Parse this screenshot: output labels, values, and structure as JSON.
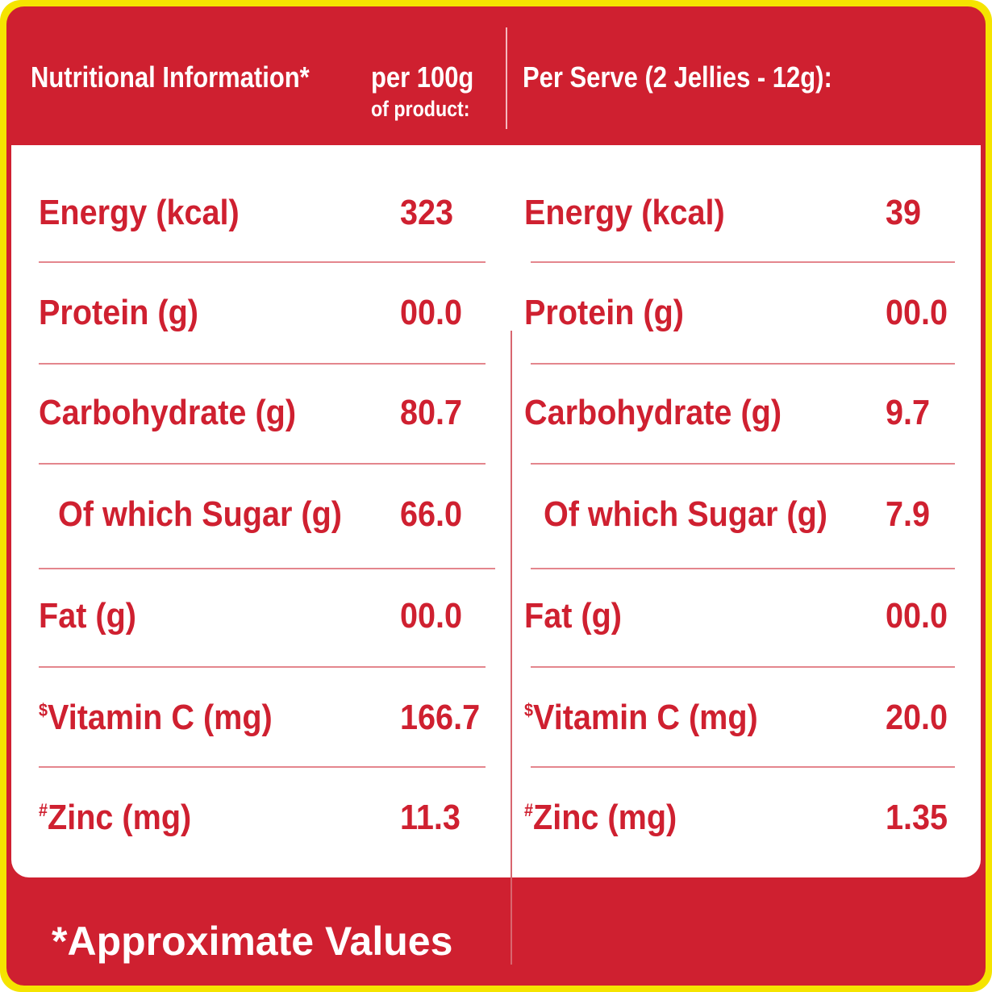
{
  "header": {
    "title": "Nutritional Information*",
    "per_100g_line1": "per 100g",
    "per_100g_line2": "of product:",
    "per_serve": "Per Serve (2 Jellies - 12g):"
  },
  "rows": [
    {
      "label": "Energy (kcal)",
      "mark": "",
      "per_100g": "323",
      "per_serve": "39"
    },
    {
      "label": "Protein (g)",
      "mark": "",
      "per_100g": "00.0",
      "per_serve": "00.0"
    },
    {
      "label": "Carbohydrate (g)",
      "mark": "",
      "per_100g": "80.7",
      "per_serve": "9.7"
    },
    {
      "label": "Of which Sugar (g)",
      "mark": "",
      "per_100g": "66.0",
      "per_serve": "7.9"
    },
    {
      "label": "Fat (g)",
      "mark": "",
      "per_100g": "00.0",
      "per_serve": "00.0"
    },
    {
      "label": "Vitamin C (mg)",
      "mark": "$",
      "per_100g": "166.7",
      "per_serve": "20.0"
    },
    {
      "label": "Zinc (mg)",
      "mark": "#",
      "per_100g": "11.3",
      "per_serve": "1.35"
    }
  ],
  "footer": "*Approximate Values",
  "colors": {
    "brand_red": "#cf2030",
    "border_yellow": "#f5e400",
    "background": "#ffffff"
  }
}
